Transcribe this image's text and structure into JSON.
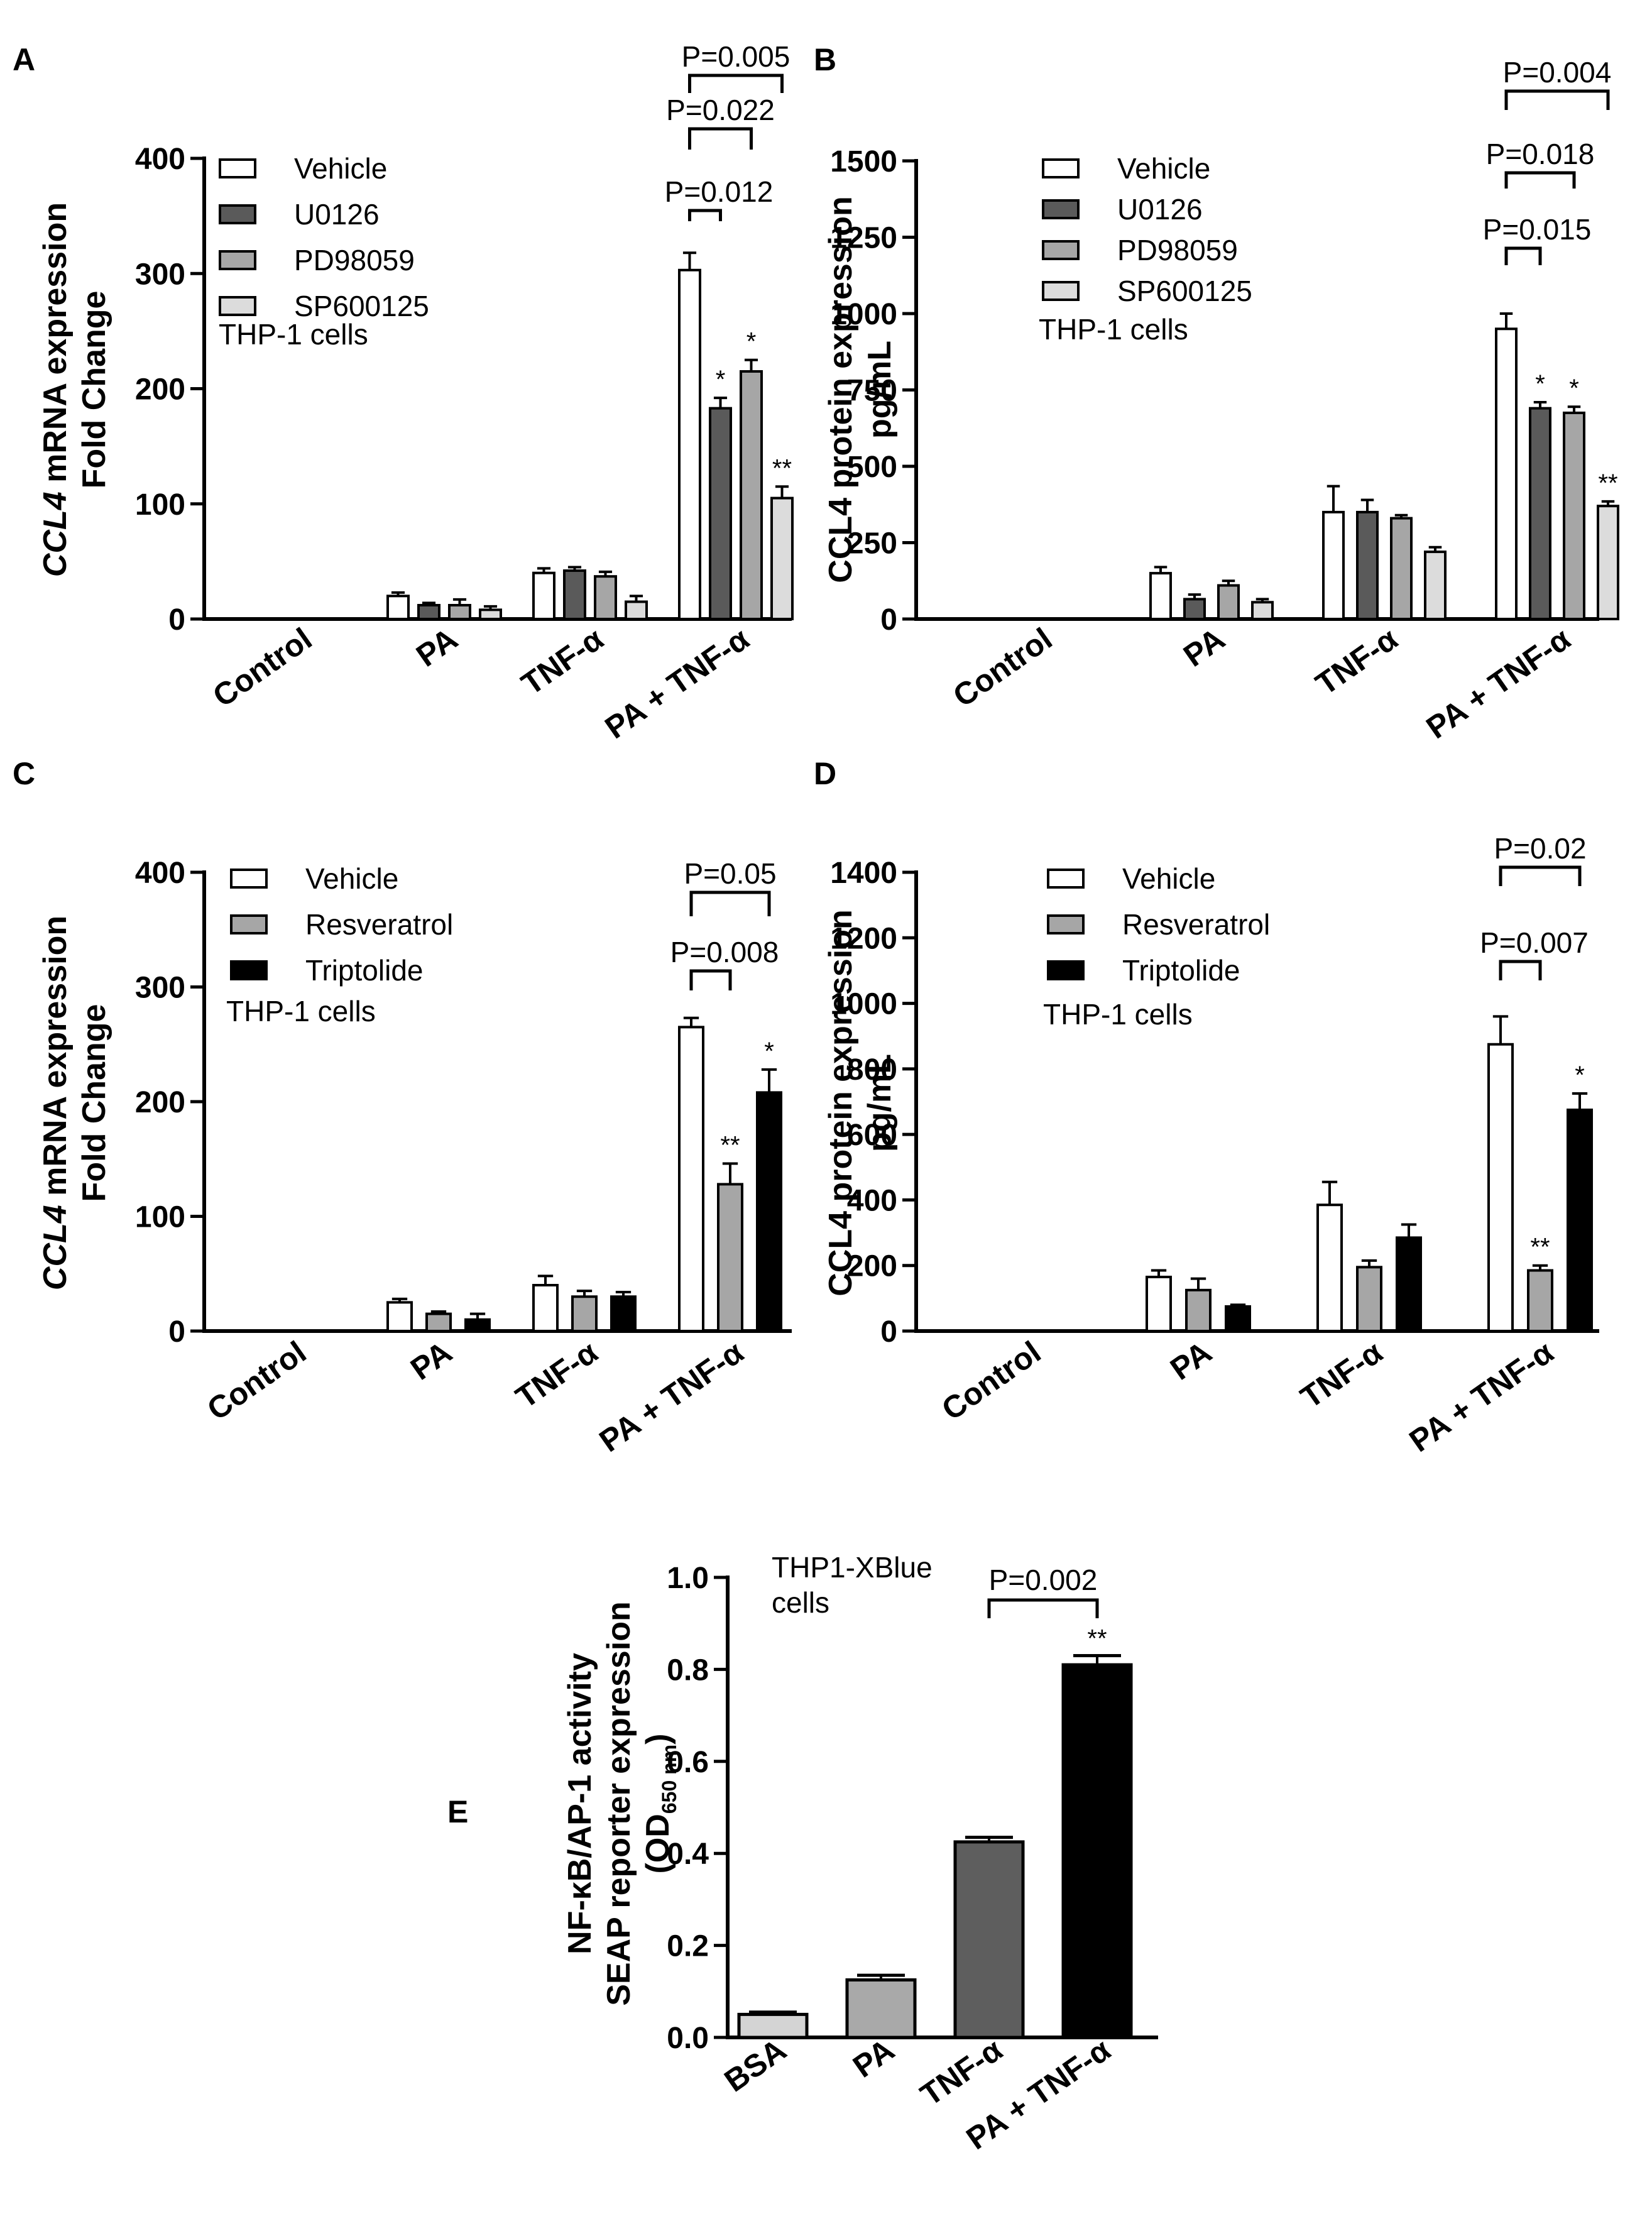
{
  "colors": {
    "vehicle": "#ffffff",
    "u0126": "#5a5a5a",
    "pd98059": "#a6a6a6",
    "sp600125": "#dcdcdc",
    "resveratrol": "#a6a6a6",
    "triptolide": "#000000",
    "bsa": "#d4d4d4",
    "pa": "#a9a9a9",
    "tnf": "#5e5e5e",
    "pa_tnf": "#000000"
  },
  "chart_data": [
    {
      "id": "A",
      "panel_label": "A",
      "type": "bar",
      "ylabel_italic": "CCL4",
      "ylabel_rest": " mRNA expression",
      "ylabel_line2": "Fold Change",
      "cell_note": "THP-1 cells",
      "ylim": [
        0,
        400
      ],
      "yticks": [
        "0",
        "100",
        "200",
        "300",
        "400"
      ],
      "categories": [
        "Control",
        "PA",
        "TNF-α",
        "PA + TNF-α"
      ],
      "series": [
        {
          "name": "Vehicle",
          "color": "#ffffff",
          "values": [
            0,
            20,
            40,
            303
          ],
          "errors": [
            0,
            3,
            4,
            15
          ]
        },
        {
          "name": "U0126",
          "color": "#5a5a5a",
          "values": [
            0,
            12,
            42,
            183
          ],
          "errors": [
            0,
            2,
            3,
            9
          ]
        },
        {
          "name": "PD98059",
          "color": "#a6a6a6",
          "values": [
            0,
            12,
            37,
            215
          ],
          "errors": [
            0,
            5,
            4,
            10
          ]
        },
        {
          "name": "SP600125",
          "color": "#dcdcdc",
          "values": [
            0,
            8,
            15,
            105
          ],
          "errors": [
            0,
            3,
            5,
            10
          ]
        }
      ],
      "significance": [
        null,
        null,
        null,
        [
          null,
          "*",
          "*",
          "**"
        ]
      ],
      "brackets": [
        {
          "group": 3,
          "from": 0,
          "to": 1,
          "label": "P=0.012"
        },
        {
          "group": 3,
          "from": 0,
          "to": 2,
          "label": "P=0.022"
        },
        {
          "group": 3,
          "from": 0,
          "to": 3,
          "label": "P=0.005"
        }
      ]
    },
    {
      "id": "B",
      "panel_label": "B",
      "type": "bar",
      "ylabel_italic": "",
      "ylabel_rest": "CCL4 protein expression",
      "ylabel_line2": "pg/mL",
      "cell_note": "THP-1 cells",
      "ylim": [
        0,
        1500
      ],
      "yticks": [
        "0",
        "250",
        "500",
        "750",
        "1000",
        "1250",
        "1500"
      ],
      "categories": [
        "Control",
        "PA",
        "TNF-α",
        "PA + TNF-α"
      ],
      "series": [
        {
          "name": "Vehicle",
          "color": "#ffffff",
          "values": [
            0,
            150,
            350,
            950
          ],
          "errors": [
            0,
            20,
            85,
            50
          ]
        },
        {
          "name": "U0126",
          "color": "#5a5a5a",
          "values": [
            0,
            65,
            350,
            690
          ],
          "errors": [
            0,
            15,
            40,
            20
          ]
        },
        {
          "name": "PD98059",
          "color": "#a6a6a6",
          "values": [
            0,
            110,
            330,
            675
          ],
          "errors": [
            0,
            15,
            10,
            20
          ]
        },
        {
          "name": "SP600125",
          "color": "#dcdcdc",
          "values": [
            0,
            55,
            220,
            370
          ],
          "errors": [
            0,
            10,
            15,
            15
          ]
        }
      ],
      "significance": [
        null,
        null,
        null,
        [
          null,
          "*",
          "*",
          "**"
        ]
      ],
      "brackets": [
        {
          "group": 3,
          "from": 0,
          "to": 1,
          "label": "P=0.015"
        },
        {
          "group": 3,
          "from": 0,
          "to": 2,
          "label": "P=0.018"
        },
        {
          "group": 3,
          "from": 0,
          "to": 3,
          "label": "P=0.004"
        }
      ]
    },
    {
      "id": "C",
      "panel_label": "C",
      "type": "bar",
      "ylabel_italic": "CCL4",
      "ylabel_rest": " mRNA expression",
      "ylabel_line2": "Fold Change",
      "cell_note": "THP-1 cells",
      "ylim": [
        0,
        400
      ],
      "yticks": [
        "0",
        "100",
        "200",
        "300",
        "400"
      ],
      "categories": [
        "Control",
        "PA",
        "TNF-α",
        "PA + TNF-α"
      ],
      "series": [
        {
          "name": "Vehicle",
          "color": "#ffffff",
          "values": [
            0,
            25,
            40,
            265
          ],
          "errors": [
            0,
            3,
            8,
            8
          ]
        },
        {
          "name": "Resveratrol",
          "color": "#a6a6a6",
          "values": [
            0,
            15,
            30,
            128
          ],
          "errors": [
            0,
            2,
            5,
            18
          ]
        },
        {
          "name": "Triptolide",
          "color": "#000000",
          "values": [
            0,
            10,
            30,
            208
          ],
          "errors": [
            0,
            5,
            4,
            20
          ]
        }
      ],
      "significance": [
        null,
        null,
        null,
        [
          null,
          "**",
          "*"
        ]
      ],
      "brackets": [
        {
          "group": 3,
          "from": 0,
          "to": 1,
          "label": "P=0.008"
        },
        {
          "group": 3,
          "from": 0,
          "to": 2,
          "label": "P=0.05"
        }
      ]
    },
    {
      "id": "D",
      "panel_label": "D",
      "type": "bar",
      "ylabel_italic": "",
      "ylabel_rest": "CCL4 protein expression",
      "ylabel_line2": "pg/mL",
      "cell_note": "THP-1 cells",
      "ylim": [
        0,
        1400
      ],
      "yticks": [
        "0",
        "200",
        "400",
        "600",
        "800",
        "1000",
        "1200",
        "1400"
      ],
      "categories": [
        "Control",
        "PA",
        "TNF-α",
        "PA + TNF-α"
      ],
      "series": [
        {
          "name": "Vehicle",
          "color": "#ffffff",
          "values": [
            0,
            165,
            385,
            875
          ],
          "errors": [
            0,
            20,
            70,
            85
          ]
        },
        {
          "name": "Resveratrol",
          "color": "#a6a6a6",
          "values": [
            0,
            125,
            195,
            185
          ],
          "errors": [
            0,
            35,
            20,
            15
          ]
        },
        {
          "name": "Triptolide",
          "color": "#000000",
          "values": [
            0,
            75,
            285,
            675
          ],
          "errors": [
            0,
            5,
            40,
            50
          ]
        }
      ],
      "significance": [
        null,
        null,
        null,
        [
          null,
          "**",
          "*"
        ]
      ],
      "brackets": [
        {
          "group": 3,
          "from": 0,
          "to": 1,
          "label": "P=0.007"
        },
        {
          "group": 3,
          "from": 0,
          "to": 2,
          "label": "P=0.02"
        }
      ]
    },
    {
      "id": "E",
      "panel_label": "E",
      "type": "bar",
      "ylabel_line1": "NF-κB/AP-1 activity",
      "ylabel_line2": "SEAP reporter expression",
      "ylabel_od": "(OD",
      "ylabel_sub": "650 nm",
      "ylabel_close": ")",
      "cell_note_line1": "THP1-XBlue",
      "cell_note_line2": "cells",
      "ylim": [
        0,
        1.0
      ],
      "yticks": [
        "0.0",
        "0.2",
        "0.4",
        "0.6",
        "0.8",
        "1.0"
      ],
      "categories": [
        "BSA",
        "PA",
        "TNF-α",
        "PA + TNF-α"
      ],
      "values": [
        0.05,
        0.125,
        0.425,
        0.81
      ],
      "errors": [
        0.005,
        0.01,
        0.01,
        0.02
      ],
      "bar_colors": [
        "#d4d4d4",
        "#a9a9a9",
        "#5e5e5e",
        "#000000"
      ],
      "significance": [
        null,
        null,
        null,
        "**"
      ],
      "brackets": [
        {
          "from": 2,
          "to": 3,
          "label": "P=0.002"
        }
      ]
    }
  ]
}
